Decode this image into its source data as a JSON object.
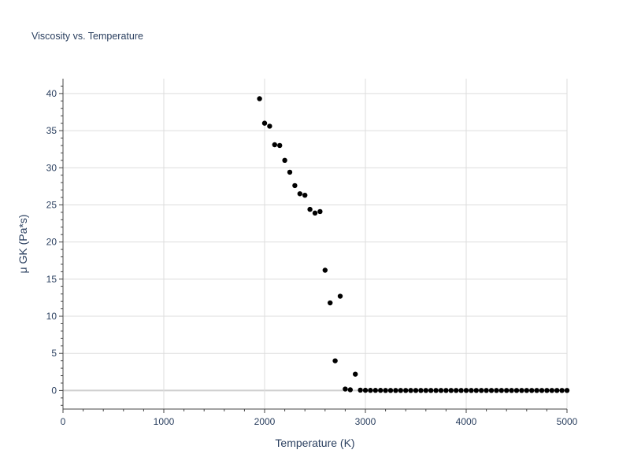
{
  "chart_data": {
    "type": "scatter",
    "title": "Viscosity vs. Temperature",
    "xlabel": "Temperature (K)",
    "ylabel": "μ GK (Pa*s)",
    "xlim": [
      0,
      5000
    ],
    "ylim": [
      -2.5,
      42
    ],
    "xticks": [
      0,
      1000,
      2000,
      3000,
      4000,
      5000
    ],
    "yticks": [
      0,
      5,
      10,
      15,
      20,
      25,
      30,
      35,
      40
    ],
    "grid": true,
    "legend": "none",
    "marker_color": "#000000",
    "series": [
      {
        "x": [
          1950,
          2000,
          2050,
          2100,
          2150,
          2200,
          2250,
          2300,
          2350,
          2400,
          2450,
          2500,
          2550,
          2600,
          2650,
          2700,
          2750,
          2800,
          2850,
          2900,
          2950,
          3000,
          3050,
          3100,
          3150,
          3200,
          3250,
          3300,
          3350,
          3400,
          3450,
          3500,
          3550,
          3600,
          3650,
          3700,
          3750,
          3800,
          3850,
          3900,
          3950,
          4000,
          4050,
          4100,
          4150,
          4200,
          4250,
          4300,
          4350,
          4400,
          4450,
          4500,
          4550,
          4600,
          4650,
          4700,
          4750,
          4800,
          4850,
          4900,
          4950,
          5000
        ],
        "y": [
          39.3,
          36.0,
          35.6,
          33.1,
          33.0,
          31.0,
          29.4,
          27.6,
          26.5,
          26.3,
          24.4,
          23.9,
          24.1,
          16.2,
          11.8,
          4.0,
          12.7,
          0.2,
          0.1,
          2.2,
          0.05,
          0.03,
          0.02,
          0.02,
          0.02,
          0.01,
          0.01,
          0.01,
          0.01,
          0.01,
          0.01,
          0.01,
          0.01,
          0.01,
          0.01,
          0.01,
          0.01,
          0.01,
          0.01,
          0.01,
          0.01,
          0.01,
          0.01,
          0.01,
          0.01,
          0.01,
          0.01,
          0.01,
          0.01,
          0.01,
          0.01,
          0.01,
          0.01,
          0.01,
          0.01,
          0.01,
          0.01,
          0.01,
          0.01,
          0.01,
          0.01,
          0.01
        ]
      }
    ]
  }
}
